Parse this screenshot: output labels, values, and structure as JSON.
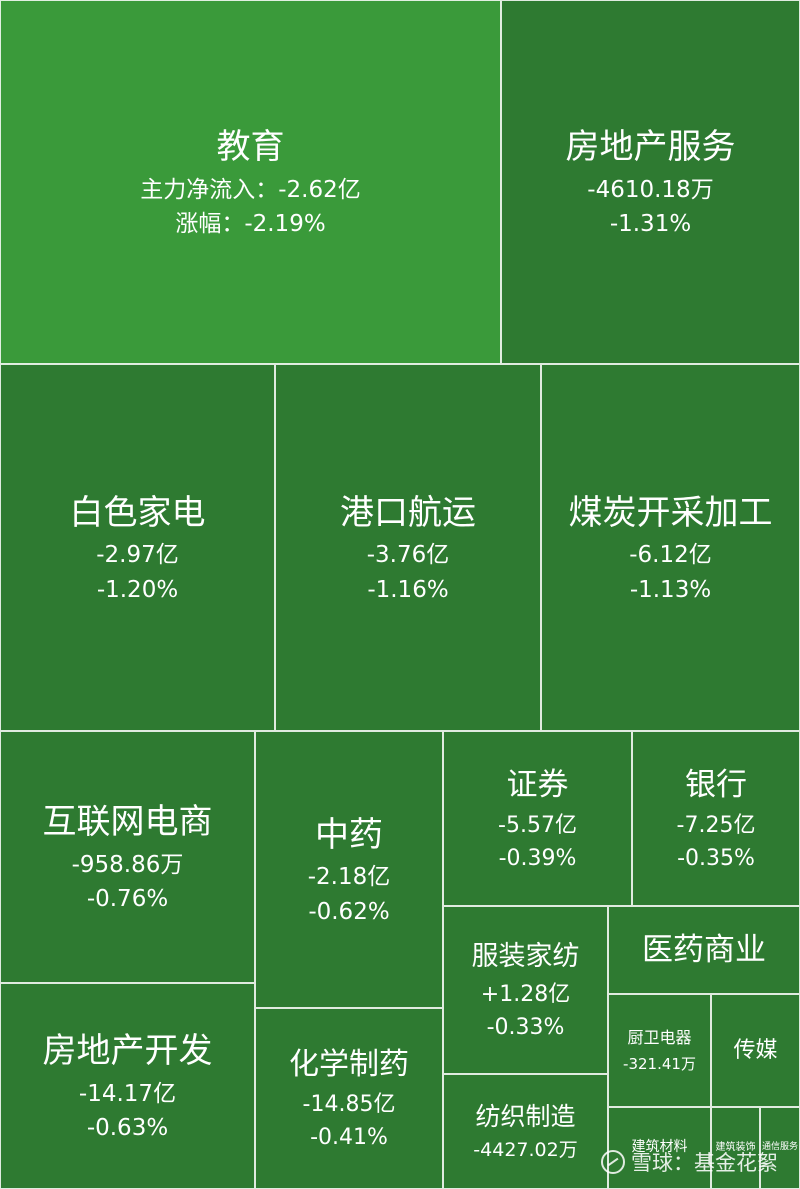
{
  "chart_data": {
    "type": "treemap",
    "colors": {
      "top": "#3a9a3a",
      "default": "#2e7a31"
    },
    "sectors": [
      {
        "name": "教育",
        "flow": "主力净流入：-2.62亿",
        "change": "涨幅：-2.19%"
      },
      {
        "name": "房地产服务",
        "flow": "-4610.18万",
        "change": "-1.31%"
      },
      {
        "name": "白色家电",
        "flow": "-2.97亿",
        "change": "-1.20%"
      },
      {
        "name": "港口航运",
        "flow": "-3.76亿",
        "change": "-1.16%"
      },
      {
        "name": "煤炭开采加工",
        "flow": "-6.12亿",
        "change": "-1.13%"
      },
      {
        "name": "互联网电商",
        "flow": "-958.86万",
        "change": "-0.76%"
      },
      {
        "name": "中药",
        "flow": "-2.18亿",
        "change": "-0.62%"
      },
      {
        "name": "证券",
        "flow": "-5.57亿",
        "change": "-0.39%"
      },
      {
        "name": "银行",
        "flow": "-7.25亿",
        "change": "-0.35%"
      },
      {
        "name": "服装家纺",
        "flow": "+1.28亿",
        "change": "-0.33%"
      },
      {
        "name": "医药商业",
        "flow": "",
        "change": ""
      },
      {
        "name": "厨卫电器",
        "flow": "-321.41万",
        "change": ""
      },
      {
        "name": "传媒",
        "flow": "",
        "change": ""
      },
      {
        "name": "房地产开发",
        "flow": "-14.17亿",
        "change": "-0.63%"
      },
      {
        "name": "化学制药",
        "flow": "-14.85亿",
        "change": "-0.41%"
      },
      {
        "name": "纺织制造",
        "flow": "-4427.02万",
        "change": ""
      },
      {
        "name": "建筑材料",
        "flow": "",
        "change": ""
      },
      {
        "name": "建筑装饰",
        "flow": "",
        "change": ""
      },
      {
        "name": "通信服务",
        "flow": "",
        "change": ""
      }
    ]
  },
  "watermark": "雪球：基金花絮"
}
